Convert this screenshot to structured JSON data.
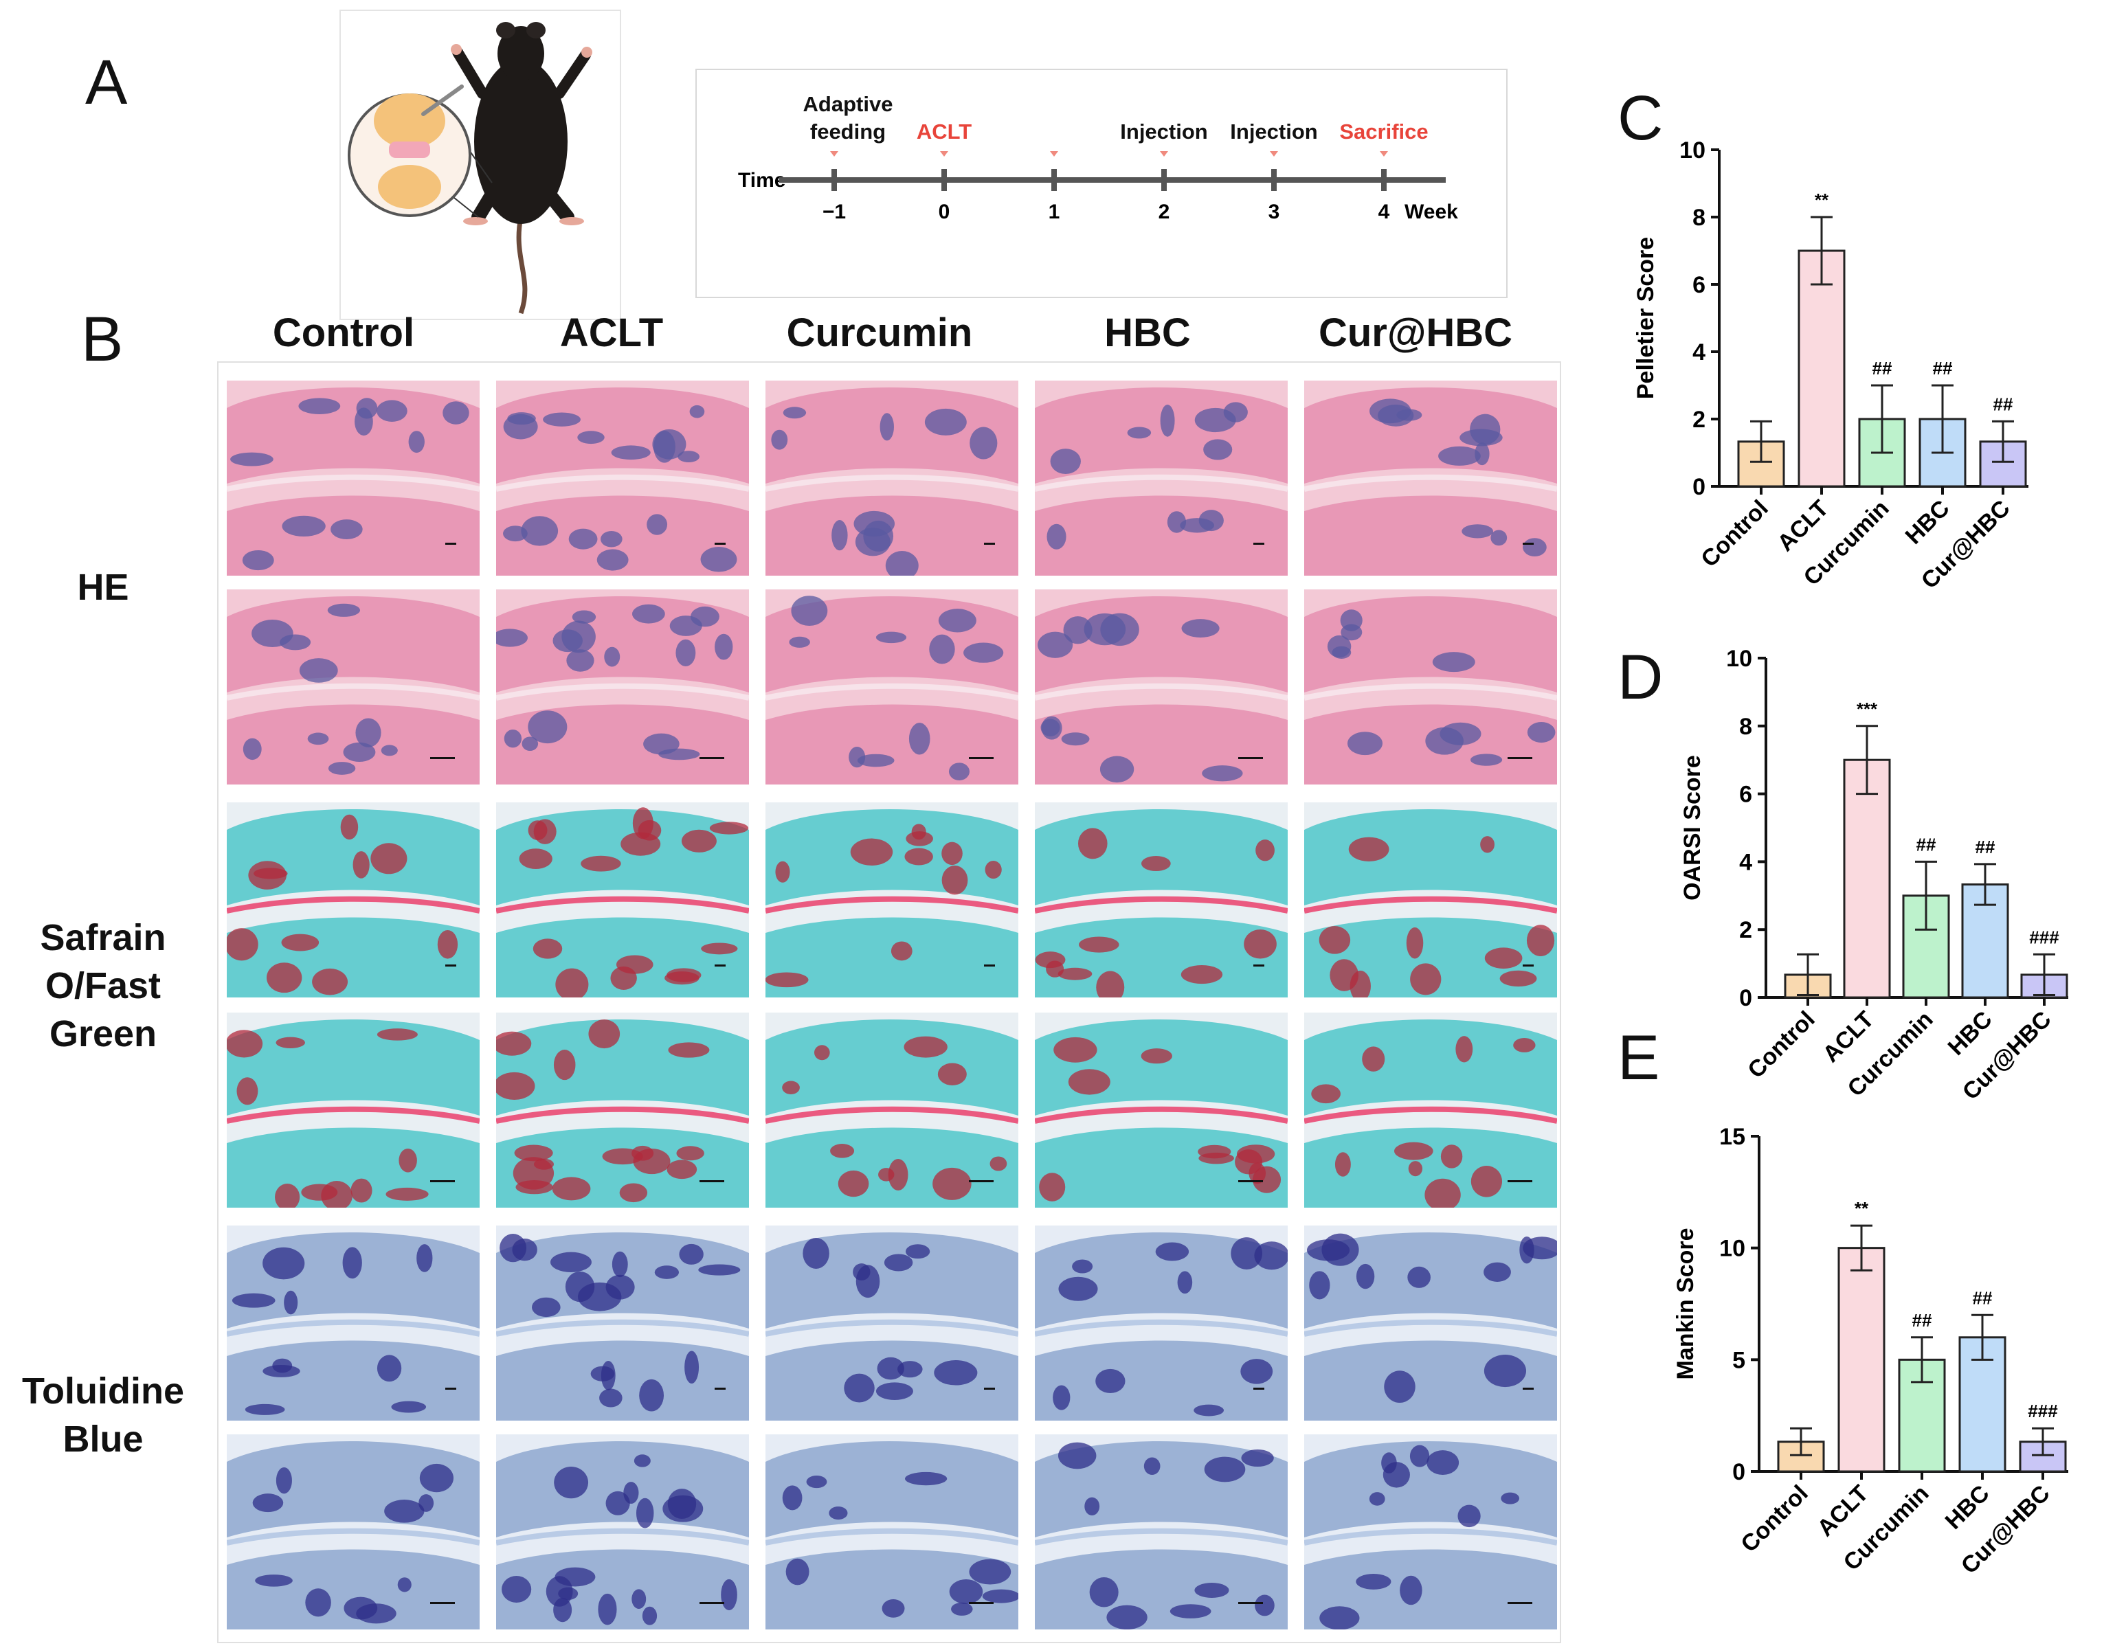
{
  "panels": {
    "a": "A",
    "b": "B",
    "c": "C",
    "d": "D",
    "e": "E"
  },
  "timeline": {
    "axis_label": "Time",
    "unit_label": "Week",
    "ticks": [
      "−1",
      "0",
      "1",
      "2",
      "3",
      "4"
    ],
    "events": [
      {
        "week": -1,
        "label": "Adaptive\nfeeding",
        "color": "#111111"
      },
      {
        "week": 0,
        "label": "ACLT",
        "color": "#e8443a"
      },
      {
        "week": 2,
        "label": "Injection",
        "color": "#111111"
      },
      {
        "week": 3,
        "label": "Injection",
        "color": "#111111"
      },
      {
        "week": 4,
        "label": "Sacrifice",
        "color": "#e8443a"
      }
    ],
    "marker_weeks": [
      -1,
      0,
      1,
      2,
      3,
      4
    ]
  },
  "histology": {
    "columns": [
      "Control",
      "ACLT",
      "Curcumin",
      "HBC",
      "Cur@HBC"
    ],
    "stains": [
      {
        "label": "HE",
        "palette": {
          "bg": "#f3c9d6",
          "matrix": "#e58fb0",
          "dark": "#5a5aa0",
          "accent": "#f7e3ea"
        }
      },
      {
        "label": "Safrain\nO/Fast\nGreen",
        "palette": {
          "bg": "#e9eff3",
          "matrix": "#4fc7c9",
          "dark": "#b22a3c",
          "accent": "#ea5a80"
        }
      },
      {
        "label": "Toluidine\nBlue",
        "palette": {
          "bg": "#e6ecf5",
          "matrix": "#8ea8cf",
          "dark": "#2f2f8a",
          "accent": "#b9cbe6"
        }
      }
    ]
  },
  "chart_data": [
    {
      "type": "bar",
      "panel": "C",
      "ylabel": "Pelletier Score",
      "categories": [
        "Control",
        "ACLT",
        "Curcumin",
        "HBC",
        "Cur@HBC"
      ],
      "values": [
        1.33,
        7.0,
        2.0,
        2.0,
        1.33
      ],
      "errors": [
        0.6,
        1.0,
        1.0,
        1.0,
        0.6
      ],
      "significance": [
        "",
        "**",
        "##",
        "##",
        "##"
      ],
      "ylim": [
        0,
        10
      ],
      "yticks": [
        0,
        2,
        4,
        6,
        8,
        10
      ],
      "colors": [
        "#f9d9b0",
        "#fadadf",
        "#bdf2cc",
        "#bfdcf8",
        "#c9c6f6"
      ]
    },
    {
      "type": "bar",
      "panel": "D",
      "ylabel": "OARSI Score",
      "categories": [
        "Control",
        "ACLT",
        "Curcumin",
        "HBC",
        "Cur@HBC"
      ],
      "values": [
        0.67,
        7.0,
        3.0,
        3.33,
        0.67
      ],
      "errors": [
        0.6,
        1.0,
        1.0,
        0.6,
        0.6
      ],
      "significance": [
        "",
        "***",
        "##",
        "##",
        "###"
      ],
      "ylim": [
        0,
        10
      ],
      "yticks": [
        0,
        2,
        4,
        6,
        8,
        10
      ],
      "colors": [
        "#f9d9b0",
        "#fadadf",
        "#bdf2cc",
        "#bfdcf8",
        "#c9c6f6"
      ]
    },
    {
      "type": "bar",
      "panel": "E",
      "ylabel": "Mankin Score",
      "categories": [
        "Control",
        "ACLT",
        "Curcumin",
        "HBC",
        "Cur@HBC"
      ],
      "values": [
        1.33,
        10.0,
        5.0,
        6.0,
        1.33
      ],
      "errors": [
        0.6,
        1.0,
        1.0,
        1.0,
        0.6
      ],
      "significance": [
        "",
        "**",
        "##",
        "##",
        "###"
      ],
      "ylim": [
        0,
        15
      ],
      "yticks": [
        0,
        5,
        10,
        15
      ],
      "colors": [
        "#f9d9b0",
        "#fadadf",
        "#bdf2cc",
        "#bfdcf8",
        "#c9c6f6"
      ]
    }
  ]
}
